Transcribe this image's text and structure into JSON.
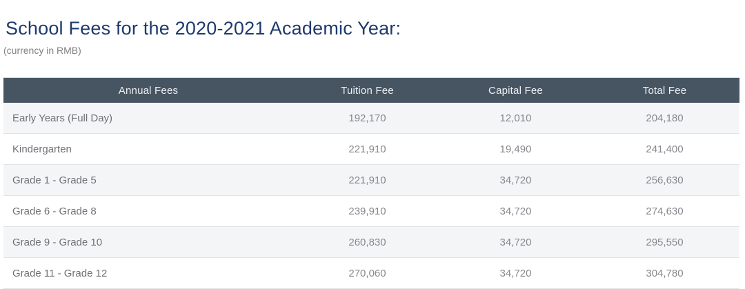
{
  "page": {
    "title": "School Fees for the 2020-2021 Academic Year:",
    "subtitle": "(currency in RMB)"
  },
  "colors": {
    "title_text": "#1e3a6c",
    "subtitle_text": "#7e8184",
    "header_bg": "#475562",
    "header_text": "#eef1f4",
    "stripe_row_bg": "#f4f5f7",
    "row_border": "#e2e3e5",
    "row_label_text": "#6e7176",
    "row_value_text": "#85888d"
  },
  "table": {
    "headers": [
      "Annual Fees",
      "Tuition Fee",
      "Capital Fee",
      "Total Fee"
    ],
    "rows": [
      {
        "label": "Early Years (Full Day)",
        "tuition": "192,170",
        "capital": "12,010",
        "total": "204,180"
      },
      {
        "label": "Kindergarten",
        "tuition": "221,910",
        "capital": "19,490",
        "total": "241,400"
      },
      {
        "label": "Grade 1 - Grade 5",
        "tuition": "221,910",
        "capital": "34,720",
        "total": "256,630"
      },
      {
        "label": "Grade 6 - Grade 8",
        "tuition": "239,910",
        "capital": "34,720",
        "total": "274,630"
      },
      {
        "label": "Grade 9 - Grade 10",
        "tuition": "260,830",
        "capital": "34,720",
        "total": "295,550"
      },
      {
        "label": "Grade 11 - Grade 12",
        "tuition": "270,060",
        "capital": "34,720",
        "total": "304,780"
      }
    ]
  }
}
